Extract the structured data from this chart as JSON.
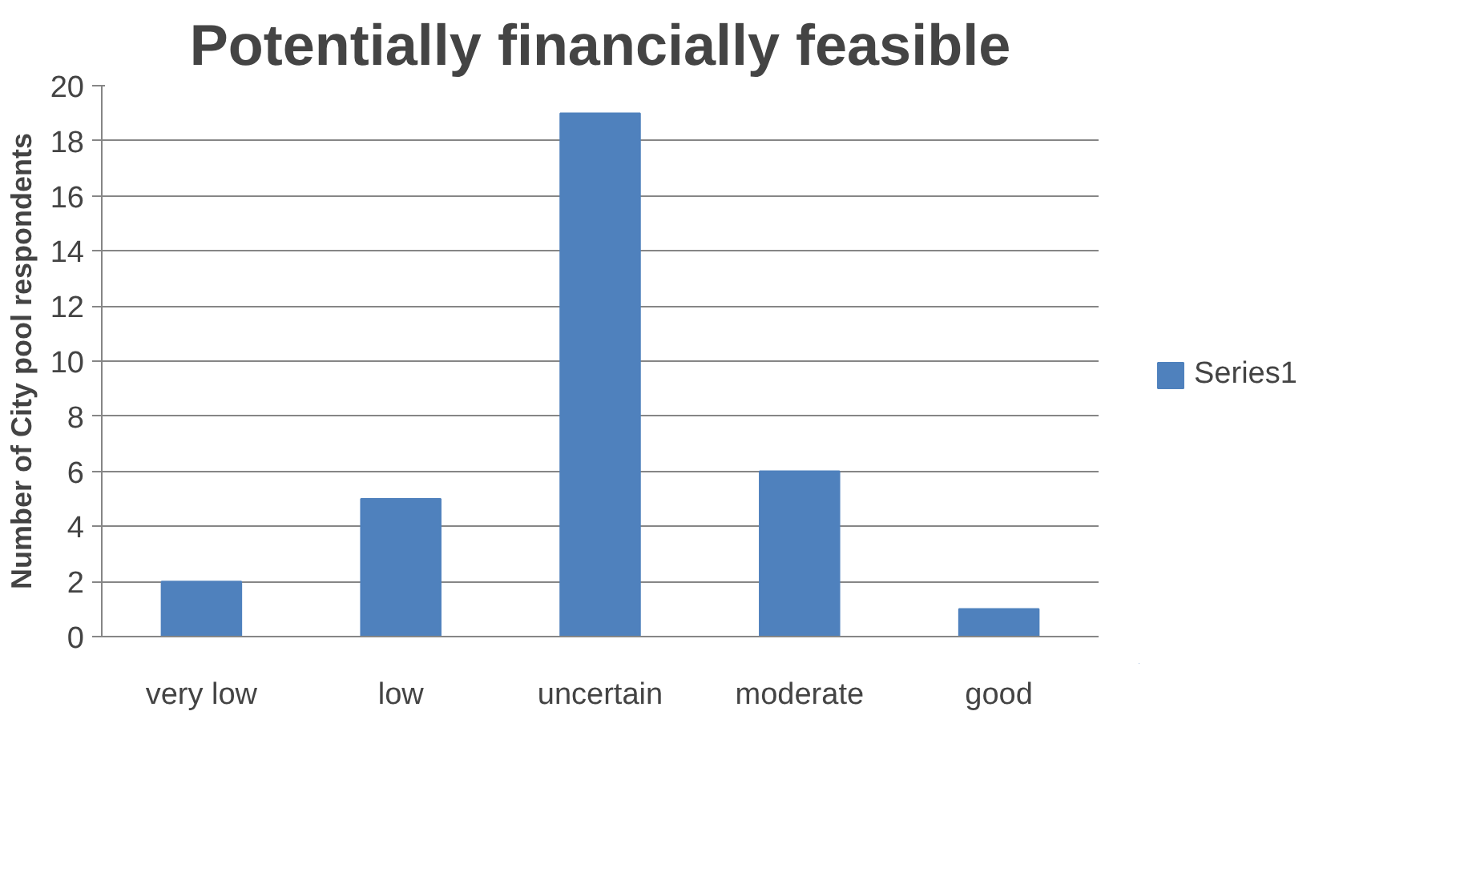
{
  "chart_data": {
    "type": "bar",
    "title": "Potentially financially feasible",
    "ylabel": "Number of City pool respondents",
    "categories": [
      "very low",
      "low",
      "uncertain",
      "moderate",
      "good"
    ],
    "series": [
      {
        "name": "Series1",
        "color": "#4f81bd",
        "values": [
          2,
          5,
          19,
          6,
          1
        ]
      }
    ],
    "ylim": [
      0,
      20
    ],
    "yticks": [
      0,
      2,
      4,
      6,
      8,
      10,
      12,
      14,
      16,
      18,
      20
    ],
    "grid": "y",
    "legend": "right"
  }
}
